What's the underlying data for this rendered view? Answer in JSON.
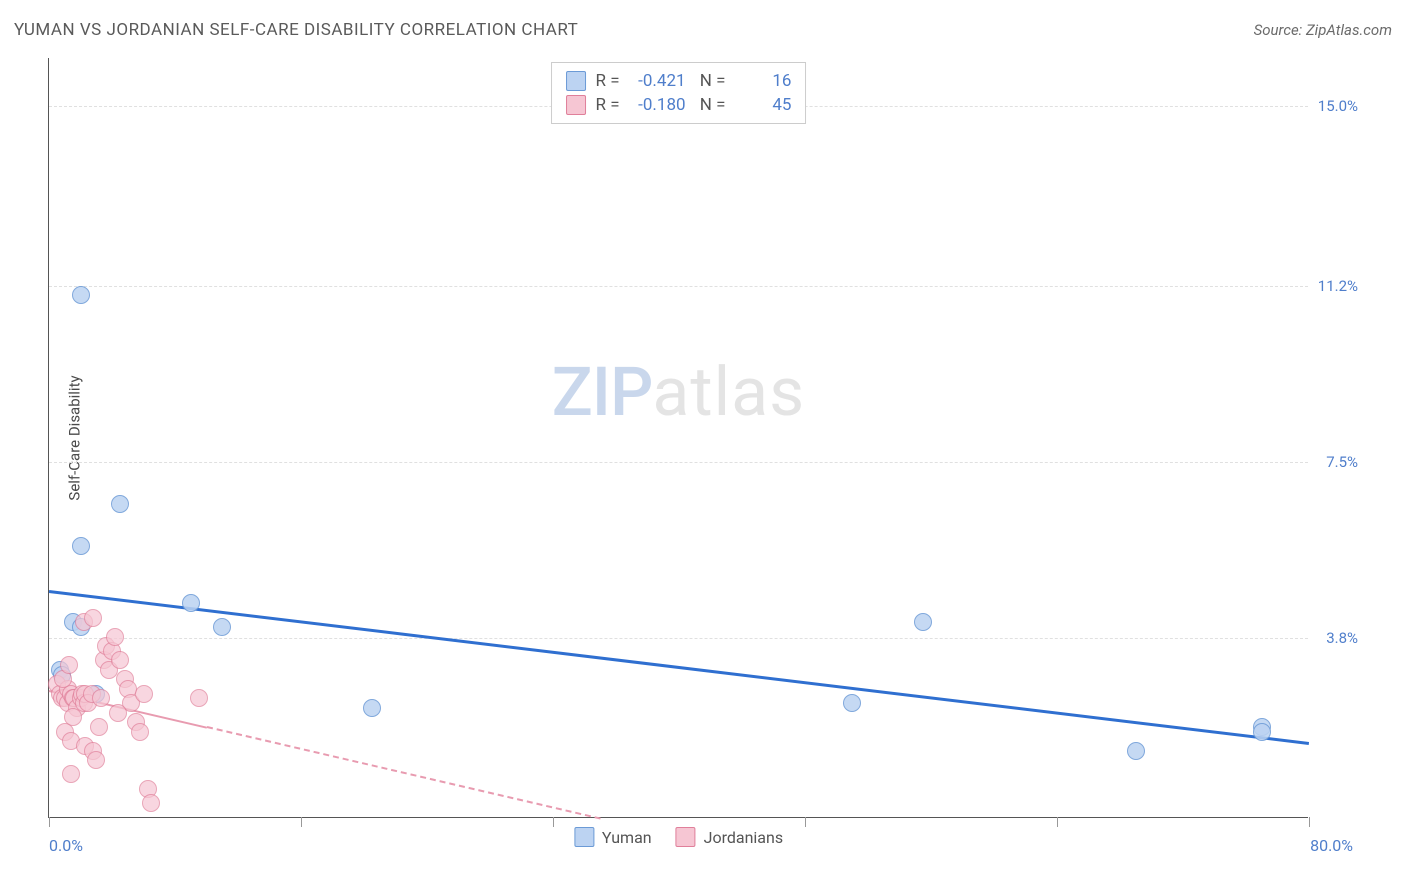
{
  "header": {
    "title": "YUMAN VS JORDANIAN SELF-CARE DISABILITY CORRELATION CHART",
    "source": "Source: ZipAtlas.com"
  },
  "watermark": {
    "left": "ZIP",
    "right": "atlas"
  },
  "chart": {
    "type": "scatter",
    "y_axis_title": "Self-Care Disability",
    "background_color": "#ffffff",
    "grid_color": "#e0e0e0",
    "axis_color": "#555555",
    "tick_label_color": "#4f7ecb",
    "xlim": [
      0.0,
      80.0
    ],
    "ylim": [
      0.0,
      16.0
    ],
    "x_min_label": "0.0%",
    "x_max_label": "80.0%",
    "y_ticks": [
      {
        "v": 3.8,
        "label": "3.8%"
      },
      {
        "v": 7.5,
        "label": "7.5%"
      },
      {
        "v": 11.2,
        "label": "11.2%"
      },
      {
        "v": 15.0,
        "label": "15.0%"
      }
    ],
    "x_tick_positions": [
      0,
      16,
      32,
      48,
      64,
      80
    ],
    "series": [
      {
        "name": "Yuman",
        "fill_color": "#bcd3f2",
        "stroke_color": "#6b9ad6",
        "point_radius": 9,
        "point_opacity": 0.85,
        "trend": {
          "x1": 0,
          "y1": 4.8,
          "x2": 80,
          "y2": 1.6,
          "color": "#2f6fd0",
          "width": 3,
          "dash": false
        },
        "stats": {
          "R": "-0.421",
          "N": "16"
        },
        "points": [
          {
            "x": 2.0,
            "y": 11.0
          },
          {
            "x": 2.0,
            "y": 5.7
          },
          {
            "x": 4.5,
            "y": 6.6
          },
          {
            "x": 1.5,
            "y": 4.1
          },
          {
            "x": 2.0,
            "y": 4.0
          },
          {
            "x": 0.7,
            "y": 3.1
          },
          {
            "x": 3.0,
            "y": 2.6
          },
          {
            "x": 9.0,
            "y": 4.5
          },
          {
            "x": 11.0,
            "y": 4.0
          },
          {
            "x": 20.5,
            "y": 2.3
          },
          {
            "x": 51.0,
            "y": 2.4
          },
          {
            "x": 55.5,
            "y": 4.1
          },
          {
            "x": 69.0,
            "y": 1.4
          },
          {
            "x": 77.0,
            "y": 1.9
          },
          {
            "x": 77.0,
            "y": 1.8
          },
          {
            "x": 0.8,
            "y": 3.0
          }
        ]
      },
      {
        "name": "Jordanians",
        "fill_color": "#f6c6d3",
        "stroke_color": "#e07f9a",
        "point_radius": 9,
        "point_opacity": 0.7,
        "trend": {
          "x1": 0,
          "y1": 2.7,
          "x2": 35,
          "y2": 0.0,
          "color": "#e89bb0",
          "width": 2,
          "dash": true,
          "solid_until_x": 10
        },
        "stats": {
          "R": "-0.180",
          "N": "45"
        },
        "points": [
          {
            "x": 0.5,
            "y": 2.8
          },
          {
            "x": 0.7,
            "y": 2.6
          },
          {
            "x": 0.8,
            "y": 2.5
          },
          {
            "x": 1.0,
            "y": 2.5
          },
          {
            "x": 1.2,
            "y": 2.4
          },
          {
            "x": 1.2,
            "y": 2.7
          },
          {
            "x": 1.4,
            "y": 2.6
          },
          {
            "x": 1.5,
            "y": 2.5
          },
          {
            "x": 1.6,
            "y": 2.5
          },
          {
            "x": 1.8,
            "y": 2.3
          },
          {
            "x": 2.0,
            "y": 2.5
          },
          {
            "x": 2.1,
            "y": 2.6
          },
          {
            "x": 2.2,
            "y": 2.4
          },
          {
            "x": 2.3,
            "y": 2.6
          },
          {
            "x": 2.5,
            "y": 2.4
          },
          {
            "x": 2.7,
            "y": 2.6
          },
          {
            "x": 0.9,
            "y": 2.9
          },
          {
            "x": 1.5,
            "y": 2.1
          },
          {
            "x": 1.0,
            "y": 1.8
          },
          {
            "x": 1.4,
            "y": 1.6
          },
          {
            "x": 2.3,
            "y": 1.5
          },
          {
            "x": 2.8,
            "y": 1.4
          },
          {
            "x": 3.0,
            "y": 1.2
          },
          {
            "x": 3.2,
            "y": 1.9
          },
          {
            "x": 3.3,
            "y": 2.5
          },
          {
            "x": 3.5,
            "y": 3.3
          },
          {
            "x": 3.6,
            "y": 3.6
          },
          {
            "x": 3.8,
            "y": 3.1
          },
          {
            "x": 4.0,
            "y": 3.5
          },
          {
            "x": 4.2,
            "y": 3.8
          },
          {
            "x": 4.5,
            "y": 3.3
          },
          {
            "x": 4.8,
            "y": 2.9
          },
          {
            "x": 5.0,
            "y": 2.7
          },
          {
            "x": 5.2,
            "y": 2.4
          },
          {
            "x": 5.5,
            "y": 2.0
          },
          {
            "x": 5.8,
            "y": 1.8
          },
          {
            "x": 6.0,
            "y": 2.6
          },
          {
            "x": 6.3,
            "y": 0.6
          },
          {
            "x": 6.5,
            "y": 0.3
          },
          {
            "x": 1.4,
            "y": 0.9
          },
          {
            "x": 2.2,
            "y": 4.1
          },
          {
            "x": 2.8,
            "y": 4.2
          },
          {
            "x": 9.5,
            "y": 2.5
          },
          {
            "x": 1.3,
            "y": 3.2
          },
          {
            "x": 4.4,
            "y": 2.2
          }
        ]
      }
    ],
    "legend": [
      {
        "label": "Yuman",
        "fill": "#bcd3f2",
        "stroke": "#6b9ad6"
      },
      {
        "label": "Jordanians",
        "fill": "#f6c6d3",
        "stroke": "#e07f9a"
      }
    ]
  }
}
